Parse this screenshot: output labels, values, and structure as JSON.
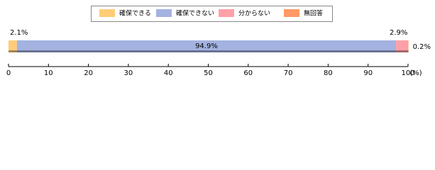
{
  "chart_data": {
    "type": "bar",
    "orientation": "horizontal",
    "stacked": true,
    "series": [
      {
        "name": "確保できる",
        "color": "#ffcc77",
        "values": [
          2.1
        ],
        "value_labels": [
          "2.1%"
        ]
      },
      {
        "name": "確保できない",
        "color": "#a3b2e0",
        "values": [
          94.9
        ],
        "value_labels": [
          "94.9%"
        ]
      },
      {
        "name": "分からない",
        "color": "#ffa0a8",
        "values": [
          2.9
        ],
        "value_labels": [
          "2.9%"
        ]
      },
      {
        "name": "無回答",
        "color": "#ff9966",
        "values": [
          0.2
        ],
        "value_labels": [
          "0.2%"
        ]
      }
    ],
    "xlim": [
      0,
      100
    ],
    "xticks": [
      0,
      10,
      20,
      30,
      40,
      50,
      60,
      70,
      80,
      90,
      100
    ],
    "xlabel": "(%)",
    "legend": "top"
  }
}
